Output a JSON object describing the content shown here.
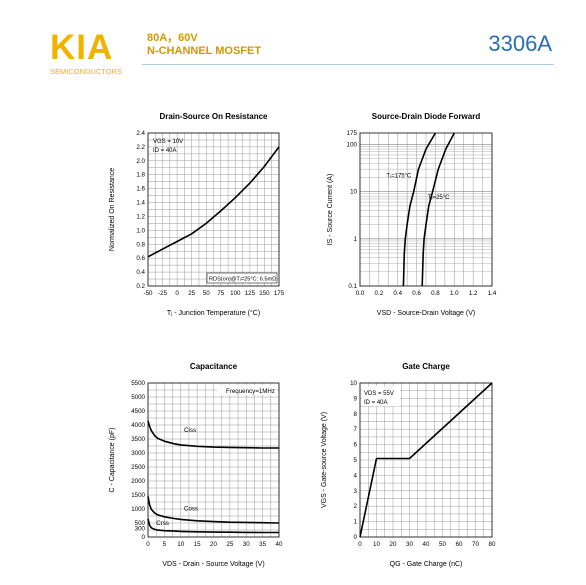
{
  "header": {
    "brand": "KIA",
    "brand_sub": "SEMICONDUCTORS",
    "spec_line1": "80A，60V",
    "spec_line2": "N-CHANNEL MOSFET",
    "part_number": "3306A",
    "colors": {
      "brand": "#f0b400",
      "spec": "#d09a00",
      "part": "#2a6db8"
    }
  },
  "chart_data": [
    {
      "id": "rds",
      "type": "line",
      "title": "Drain-Source On Resistance",
      "xlabel": "Tⱼ - Junction Temperature (°C)",
      "ylabel": "Normalized On Resistance",
      "xlim": [
        -50,
        175
      ],
      "ylim": [
        0.2,
        2.4
      ],
      "xticks": [
        -50,
        -25,
        0,
        25,
        50,
        75,
        100,
        125,
        150,
        175
      ],
      "yticks": [
        0.2,
        0.4,
        0.6,
        0.8,
        1.0,
        1.2,
        1.4,
        1.6,
        1.8,
        2.0,
        2.2,
        2.4
      ],
      "ytick_labels": [
        "0.2",
        "0.4",
        "0.6",
        "0.8",
        "1.0",
        "1.2",
        "1.4",
        "1.6",
        "1.8",
        "2.0",
        "2.2",
        "2.4"
      ],
      "grid": true,
      "annotations": [
        {
          "text": "VGS = 10V",
          "pos": "top-left"
        },
        {
          "text": "ID = 40A",
          "pos": "top-left"
        },
        {
          "text": "RDS(on)@Tⱼ=25°C: 6.5mΩ",
          "pos": "bottom-right"
        }
      ],
      "series": [
        {
          "x": [
            -50,
            -25,
            0,
            25,
            50,
            75,
            100,
            125,
            150,
            175
          ],
          "y": [
            0.62,
            0.73,
            0.84,
            0.95,
            1.1,
            1.28,
            1.47,
            1.68,
            1.92,
            2.2
          ]
        }
      ]
    },
    {
      "id": "diode",
      "type": "line",
      "title": "Source-Drain Diode Forward",
      "xlabel": "VSD - Source-Drain Voltage (V)",
      "ylabel": "IS - Source Current (A)",
      "xlim": [
        0.0,
        1.4
      ],
      "ylim": [
        0.1,
        175
      ],
      "yscale": "log",
      "xticks": [
        0.0,
        0.2,
        0.4,
        0.6,
        0.8,
        1.0,
        1.2,
        1.4
      ],
      "xtick_labels": [
        "0.0",
        "0.2",
        "0.4",
        "0.6",
        "0.8",
        "1.0",
        "1.2",
        "1.4"
      ],
      "yticks": [
        0.1,
        1,
        10,
        100,
        175
      ],
      "ytick_labels": [
        "0.1",
        "1",
        "10",
        "100",
        "175"
      ],
      "grid": true,
      "series": [
        {
          "name": "Tⱼ=175°C",
          "x": [
            0.46,
            0.47,
            0.48,
            0.5,
            0.53,
            0.57,
            0.62,
            0.7,
            0.8
          ],
          "y": [
            0.1,
            0.5,
            1,
            2,
            5,
            10,
            30,
            80,
            175
          ]
        },
        {
          "name": "Tⱼ=25°C",
          "x": [
            0.66,
            0.67,
            0.68,
            0.7,
            0.73,
            0.77,
            0.83,
            0.91,
            1.0
          ],
          "y": [
            0.1,
            0.5,
            1,
            2,
            5,
            10,
            30,
            80,
            175
          ]
        }
      ]
    },
    {
      "id": "cap",
      "type": "line",
      "title": "Capacitance",
      "xlabel": "VDS - Drain - Source Voltage (V)",
      "ylabel": "C - Capacitance (pF)",
      "xlim": [
        0,
        40
      ],
      "ylim": [
        0,
        5500
      ],
      "xticks": [
        0,
        5,
        10,
        15,
        20,
        25,
        30,
        35,
        40
      ],
      "yticks": [
        0,
        300,
        500,
        1000,
        1500,
        2000,
        2500,
        3000,
        3500,
        4000,
        4500,
        5000,
        5500
      ],
      "ytick_labels": [
        "0",
        "300",
        "500",
        "1000",
        "1500",
        "2000",
        "2500",
        "3000",
        "3500",
        "4000",
        "4500",
        "5000",
        "5500"
      ],
      "grid": true,
      "annotations": [
        {
          "text": "Frequency=1MHz",
          "pos": "top-right"
        }
      ],
      "series": [
        {
          "name": "Ciss",
          "x": [
            0,
            0.5,
            1,
            2,
            3,
            5,
            8,
            10,
            15,
            20,
            25,
            30,
            35,
            40
          ],
          "y": [
            4150,
            3950,
            3800,
            3620,
            3520,
            3420,
            3330,
            3290,
            3240,
            3210,
            3200,
            3190,
            3180,
            3180
          ]
        },
        {
          "name": "Coss",
          "x": [
            0,
            0.5,
            1,
            2,
            3,
            5,
            8,
            10,
            15,
            20,
            25,
            30,
            35,
            40
          ],
          "y": [
            1450,
            1150,
            990,
            860,
            790,
            720,
            660,
            630,
            580,
            550,
            530,
            520,
            510,
            500
          ]
        },
        {
          "name": "Crss",
          "x": [
            0,
            0.5,
            1,
            2,
            3,
            5,
            8,
            10,
            15,
            20,
            25,
            30,
            35,
            40
          ],
          "y": [
            650,
            420,
            330,
            270,
            245,
            225,
            210,
            200,
            185,
            175,
            170,
            165,
            160,
            160
          ]
        }
      ]
    },
    {
      "id": "gate",
      "type": "line",
      "title": "Gate Charge",
      "xlabel": "QG - Gate Charge (nC)",
      "ylabel": "VGS - Gate-source Voltage (V)",
      "xlim": [
        0,
        80
      ],
      "ylim": [
        0,
        10
      ],
      "xticks": [
        0,
        10,
        20,
        30,
        40,
        50,
        60,
        70,
        80
      ],
      "yticks": [
        0,
        1,
        2,
        3,
        4,
        5,
        6,
        7,
        8,
        9,
        10
      ],
      "grid": true,
      "annotations": [
        {
          "text": "VDS = 55V",
          "pos": "top-left"
        },
        {
          "text": "ID = 40A",
          "pos": "top-left"
        }
      ],
      "series": [
        {
          "x": [
            0,
            10,
            30,
            80
          ],
          "y": [
            0,
            5.1,
            5.1,
            10
          ]
        }
      ]
    }
  ]
}
